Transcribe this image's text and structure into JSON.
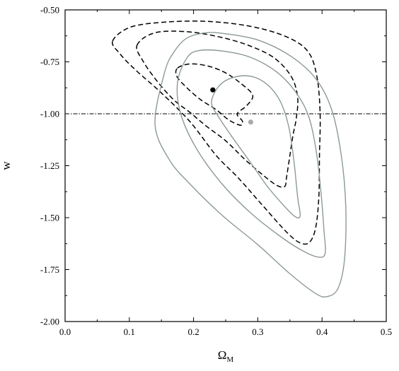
{
  "chart_data": {
    "type": "line",
    "title": "",
    "xlabel": "Ω",
    "xlabel_sub": "M",
    "ylabel": "w",
    "xlim": [
      0.0,
      0.5
    ],
    "ylim": [
      -2.0,
      -0.5
    ],
    "xticks": [
      0.0,
      0.1,
      0.2,
      0.3,
      0.4,
      0.5
    ],
    "xtick_labels": [
      "0.0",
      "0.1",
      "0.2",
      "0.3",
      "0.4",
      "0.5"
    ],
    "yticks": [
      -2.0,
      -1.75,
      -1.5,
      -1.25,
      -1.0,
      -0.75,
      -0.5
    ],
    "ytick_labels": [
      "-2.00",
      "-1.75",
      "-1.50",
      "-1.25",
      "-1.00",
      "-0.75",
      "-0.50"
    ],
    "grid": false,
    "colors": {
      "black": "#000000",
      "gray": "#8c9a96",
      "gray_point": "#a9a9a9"
    },
    "reference_line": {
      "y": -1.0,
      "style": "dash-dot",
      "color": "#000000"
    },
    "series": [
      {
        "style": "dashed",
        "color": "#000000",
        "contours": [
          {
            "points": [
              [
                0.175,
                -0.78
              ],
              [
                0.195,
                -0.76
              ],
              [
                0.222,
                -0.77
              ],
              [
                0.248,
                -0.8
              ],
              [
                0.272,
                -0.85
              ],
              [
                0.292,
                -0.91
              ],
              [
                0.283,
                -0.96
              ],
              [
                0.268,
                -1.0
              ],
              [
                0.276,
                -1.035
              ],
              [
                0.273,
                -1.055
              ],
              [
                0.255,
                -1.03
              ],
              [
                0.235,
                -0.98
              ],
              [
                0.21,
                -0.93
              ],
              [
                0.188,
                -0.87
              ],
              [
                0.174,
                -0.82
              ]
            ]
          },
          {
            "points": [
              [
                0.112,
                -0.67
              ],
              [
                0.14,
                -0.61
              ],
              [
                0.19,
                -0.605
              ],
              [
                0.24,
                -0.63
              ],
              [
                0.285,
                -0.67
              ],
              [
                0.325,
                -0.73
              ],
              [
                0.352,
                -0.82
              ],
              [
                0.362,
                -0.92
              ],
              [
                0.36,
                -1.02
              ],
              [
                0.355,
                -1.1
              ],
              [
                0.35,
                -1.2
              ],
              [
                0.345,
                -1.3
              ],
              [
                0.342,
                -1.35
              ],
              [
                0.33,
                -1.345
              ],
              [
                0.31,
                -1.3
              ],
              [
                0.28,
                -1.22
              ],
              [
                0.25,
                -1.13
              ],
              [
                0.22,
                -1.06
              ],
              [
                0.195,
                -0.995
              ],
              [
                0.17,
                -0.935
              ],
              [
                0.145,
                -0.85
              ],
              [
                0.122,
                -0.75
              ]
            ]
          },
          {
            "points": [
              [
                0.074,
                -0.65
              ],
              [
                0.1,
                -0.585
              ],
              [
                0.15,
                -0.56
              ],
              [
                0.22,
                -0.555
              ],
              [
                0.29,
                -0.58
              ],
              [
                0.345,
                -0.63
              ],
              [
                0.378,
                -0.7
              ],
              [
                0.392,
                -0.82
              ],
              [
                0.397,
                -1.0
              ],
              [
                0.396,
                -1.2
              ],
              [
                0.395,
                -1.4
              ],
              [
                0.39,
                -1.55
              ],
              [
                0.38,
                -1.62
              ],
              [
                0.365,
                -1.62
              ],
              [
                0.345,
                -1.57
              ],
              [
                0.31,
                -1.45
              ],
              [
                0.27,
                -1.31
              ],
              [
                0.235,
                -1.2
              ],
              [
                0.195,
                -1.04
              ],
              [
                0.15,
                -0.9
              ],
              [
                0.11,
                -0.79
              ],
              [
                0.085,
                -0.71
              ]
            ]
          }
        ]
      },
      {
        "style": "solid",
        "color": "#8c9a96",
        "contours": [
          {
            "points": [
              [
                0.228,
                -0.945
              ],
              [
                0.24,
                -0.865
              ],
              [
                0.262,
                -0.825
              ],
              [
                0.29,
                -0.82
              ],
              [
                0.315,
                -0.86
              ],
              [
                0.335,
                -0.94
              ],
              [
                0.348,
                -1.06
              ],
              [
                0.356,
                -1.22
              ],
              [
                0.362,
                -1.4
              ],
              [
                0.366,
                -1.49
              ],
              [
                0.358,
                -1.495
              ],
              [
                0.34,
                -1.44
              ],
              [
                0.315,
                -1.35
              ],
              [
                0.29,
                -1.24
              ],
              [
                0.262,
                -1.12
              ],
              [
                0.24,
                -1.02
              ]
            ]
          },
          {
            "points": [
              [
                0.175,
                -0.85
              ],
              [
                0.19,
                -0.73
              ],
              [
                0.21,
                -0.695
              ],
              [
                0.25,
                -0.7
              ],
              [
                0.29,
                -0.73
              ],
              [
                0.33,
                -0.8
              ],
              [
                0.36,
                -0.9
              ],
              [
                0.38,
                -1.02
              ],
              [
                0.392,
                -1.2
              ],
              [
                0.399,
                -1.4
              ],
              [
                0.403,
                -1.56
              ],
              [
                0.405,
                -1.67
              ],
              [
                0.395,
                -1.69
              ],
              [
                0.37,
                -1.66
              ],
              [
                0.335,
                -1.59
              ],
              [
                0.29,
                -1.48
              ],
              [
                0.245,
                -1.34
              ],
              [
                0.205,
                -1.17
              ],
              [
                0.18,
                -1.0
              ]
            ]
          },
          {
            "points": [
              [
                0.14,
                -1.05
              ],
              [
                0.155,
                -0.8
              ],
              [
                0.17,
                -0.7
              ],
              [
                0.19,
                -0.635
              ],
              [
                0.22,
                -0.61
              ],
              [
                0.25,
                -0.615
              ],
              [
                0.3,
                -0.645
              ],
              [
                0.35,
                -0.72
              ],
              [
                0.39,
                -0.83
              ],
              [
                0.415,
                -0.98
              ],
              [
                0.43,
                -1.2
              ],
              [
                0.437,
                -1.45
              ],
              [
                0.435,
                -1.7
              ],
              [
                0.425,
                -1.84
              ],
              [
                0.408,
                -1.88
              ],
              [
                0.39,
                -1.865
              ],
              [
                0.35,
                -1.77
              ],
              [
                0.3,
                -1.63
              ],
              [
                0.245,
                -1.49
              ],
              [
                0.195,
                -1.34
              ],
              [
                0.162,
                -1.22
              ]
            ]
          }
        ]
      }
    ],
    "points": [
      {
        "x": 0.23,
        "y": -0.885,
        "color": "#000000"
      },
      {
        "x": 0.289,
        "y": -1.04,
        "color": "#a9a9a9"
      }
    ]
  }
}
